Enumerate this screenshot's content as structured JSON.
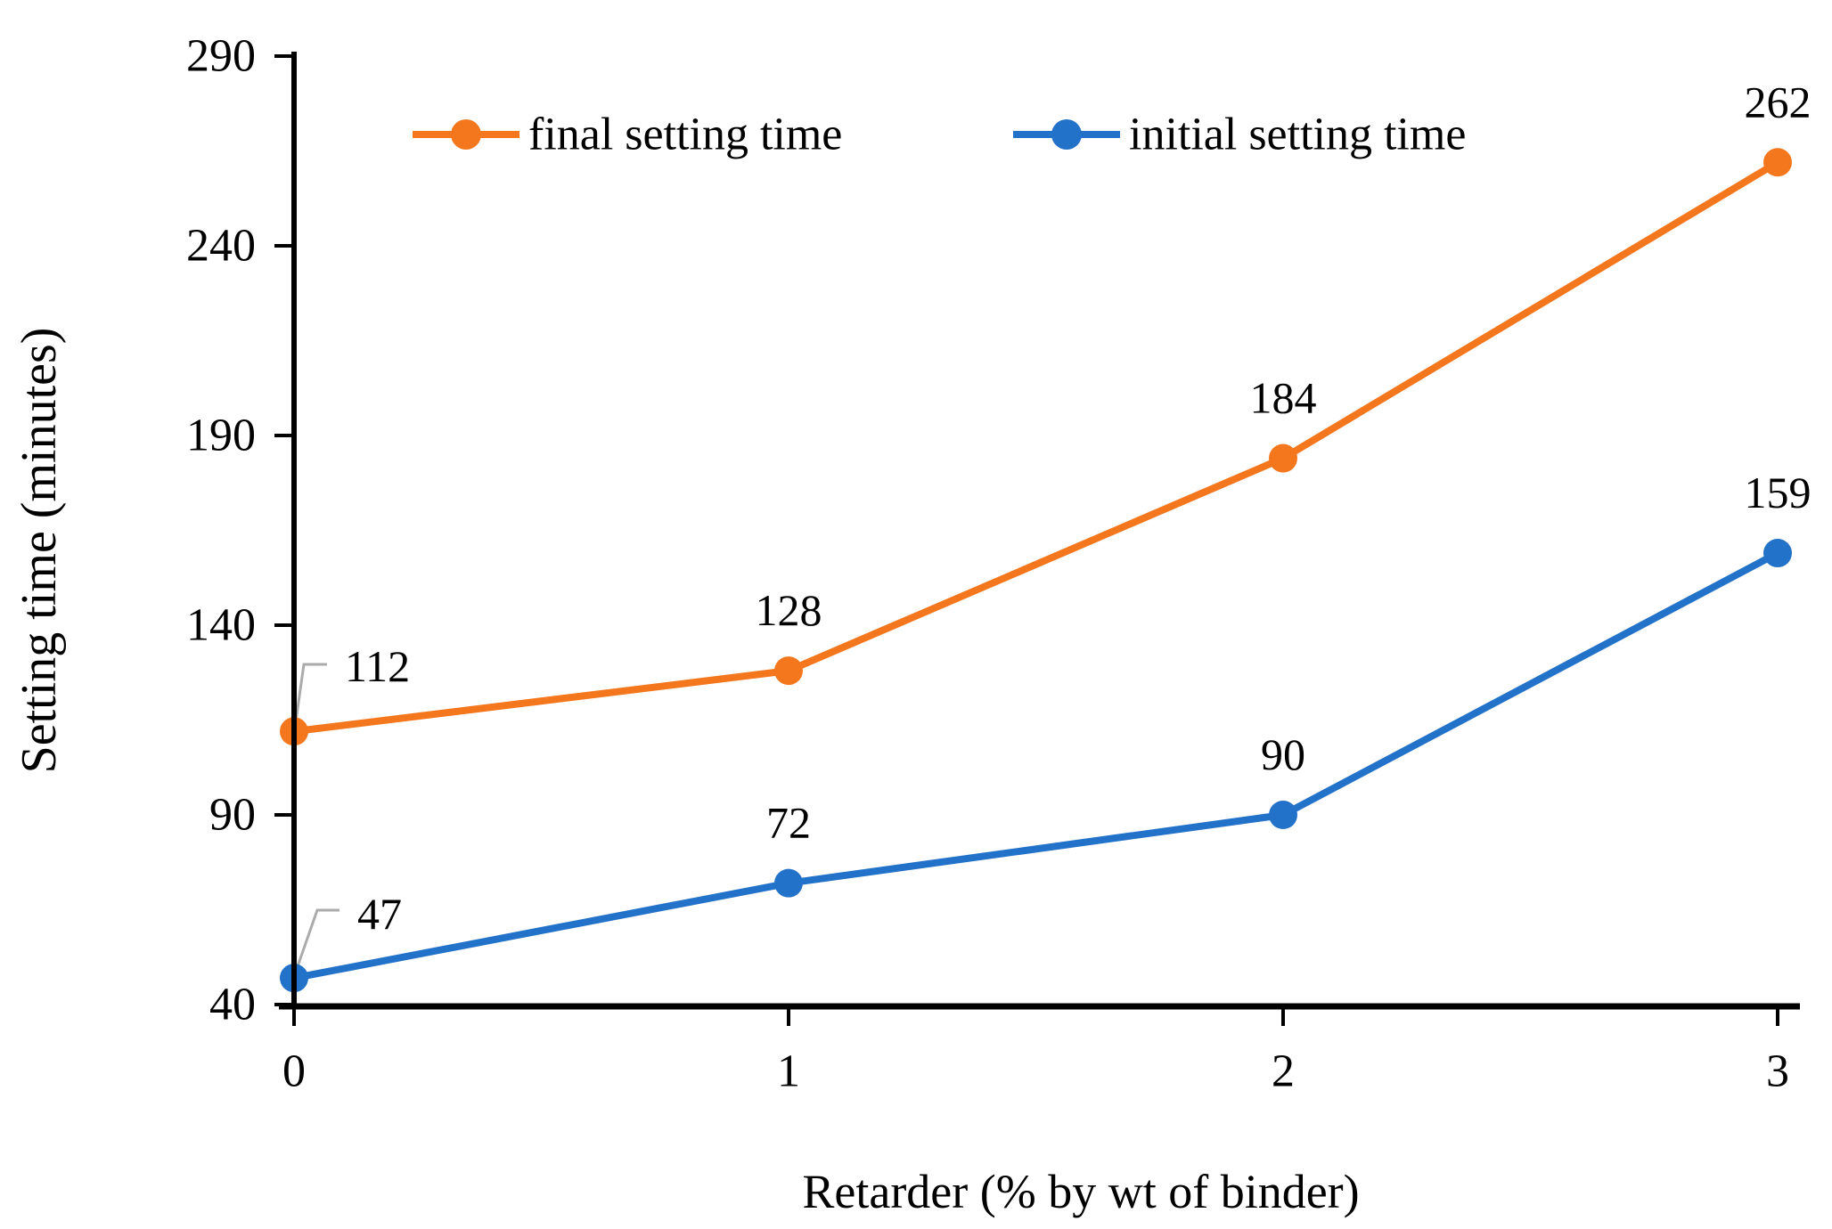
{
  "chart_data": {
    "type": "line",
    "title": "",
    "xlabel": "Retarder (% by wt of binder)",
    "ylabel": "Setting time (minutes)",
    "x": [
      0,
      1,
      2,
      3
    ],
    "x_tick_labels": [
      "0",
      "1",
      "2",
      "3"
    ],
    "y_ticks": [
      290,
      240,
      190,
      140,
      90,
      40
    ],
    "ylim": [
      40,
      290
    ],
    "grid": false,
    "legend_position": "top-center",
    "data_labels_shown": true,
    "series": [
      {
        "name": "final setting time",
        "color": "#F4771E",
        "values": [
          112,
          128,
          184,
          262
        ],
        "data_labels": [
          "112",
          "128",
          "184",
          "262"
        ]
      },
      {
        "name": "initial setting time",
        "color": "#2372C9",
        "values": [
          47,
          72,
          90,
          159
        ],
        "data_labels": [
          "47",
          "72",
          "90",
          "159"
        ]
      }
    ],
    "colors": {
      "axis": "#000000",
      "text": "#000000",
      "leader_line": "#ABABAB",
      "background": "#FFFFFF"
    }
  }
}
